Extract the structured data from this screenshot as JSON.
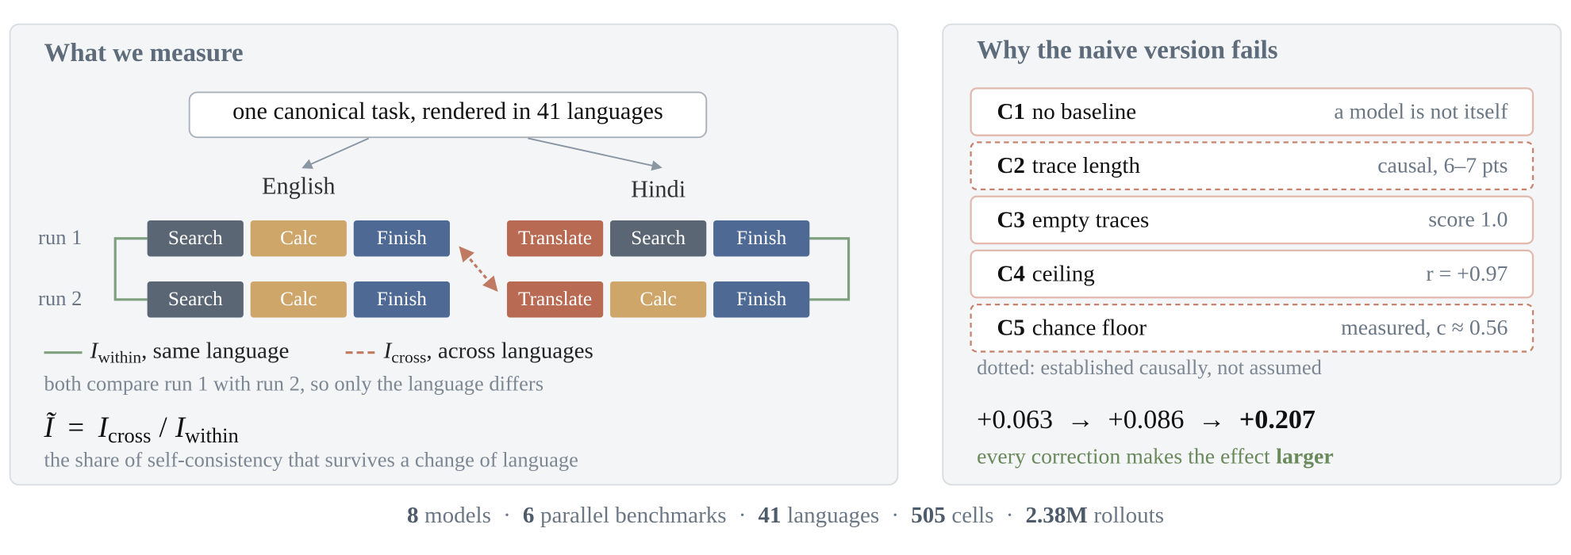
{
  "left_panel": {
    "title": "What we measure",
    "task": "one canonical task, rendered in 41 languages",
    "run_labels": [
      "run 1",
      "run 2"
    ],
    "languages": [
      {
        "name": "English",
        "runs": [
          [
            {
              "label": "Search",
              "color": "#5a6673"
            },
            {
              "label": "Calc",
              "color": "#cfa66a"
            },
            {
              "label": "Finish",
              "color": "#4e6a94"
            }
          ],
          [
            {
              "label": "Search",
              "color": "#5a6673"
            },
            {
              "label": "Calc",
              "color": "#cfa66a"
            },
            {
              "label": "Finish",
              "color": "#4e6a94"
            }
          ]
        ]
      },
      {
        "name": "Hindi",
        "runs": [
          [
            {
              "label": "Translate",
              "color": "#b86a52"
            },
            {
              "label": "Search",
              "color": "#5a6673"
            },
            {
              "label": "Finish",
              "color": "#4e6a94"
            }
          ],
          [
            {
              "label": "Translate",
              "color": "#b86a52"
            },
            {
              "label": "Calc",
              "color": "#cfa66a"
            },
            {
              "label": "Finish",
              "color": "#4e6a94"
            }
          ]
        ]
      }
    ],
    "legend": [
      {
        "symbol": "I",
        "subscript": "within",
        "text": ", same language",
        "color": "#7fa07f",
        "dashed": false
      },
      {
        "symbol": "I",
        "subscript": "cross",
        "text": ", across languages",
        "color": "#c07a62",
        "dashed": true
      }
    ],
    "note": "both compare run 1 with run 2, so only the language differs",
    "formula": {
      "lhs": "Ĩ",
      "eq": "=",
      "num": "I",
      "num_sub": "cross",
      "op": "/",
      "den": "I",
      "den_sub": "within"
    },
    "formula_caption": "the share of self-consistency that survives a change of language"
  },
  "right_panel": {
    "title": "Why the naive version fails",
    "items": [
      {
        "id": "C1",
        "label": "no baseline",
        "detail": "a model is not itself",
        "dotted": false
      },
      {
        "id": "C2",
        "label": "trace length",
        "detail": "causal, 6–7 pts",
        "dotted": true
      },
      {
        "id": "C3",
        "label": "empty traces",
        "detail": "score 1.0",
        "dotted": false
      },
      {
        "id": "C4",
        "label": "ceiling",
        "detail": "r = +0.97",
        "dotted": false
      },
      {
        "id": "C5",
        "label": "chance floor",
        "detail": "measured, c ≈ 0.56",
        "dotted": true
      }
    ],
    "note": "dotted: established causally, not assumed",
    "progression": [
      "+0.063",
      "+0.086",
      "+0.207"
    ],
    "arrow": "→",
    "caption": "every correction makes the effect",
    "caption_emphasis": "larger"
  },
  "footer": {
    "separator": "·",
    "stats": [
      {
        "value": "8",
        "label": "models"
      },
      {
        "value": "6",
        "label": "parallel benchmarks"
      },
      {
        "value": "41",
        "label": "languages"
      },
      {
        "value": "505",
        "label": "cells"
      },
      {
        "value": "2.38M",
        "label": "rollouts"
      }
    ]
  }
}
